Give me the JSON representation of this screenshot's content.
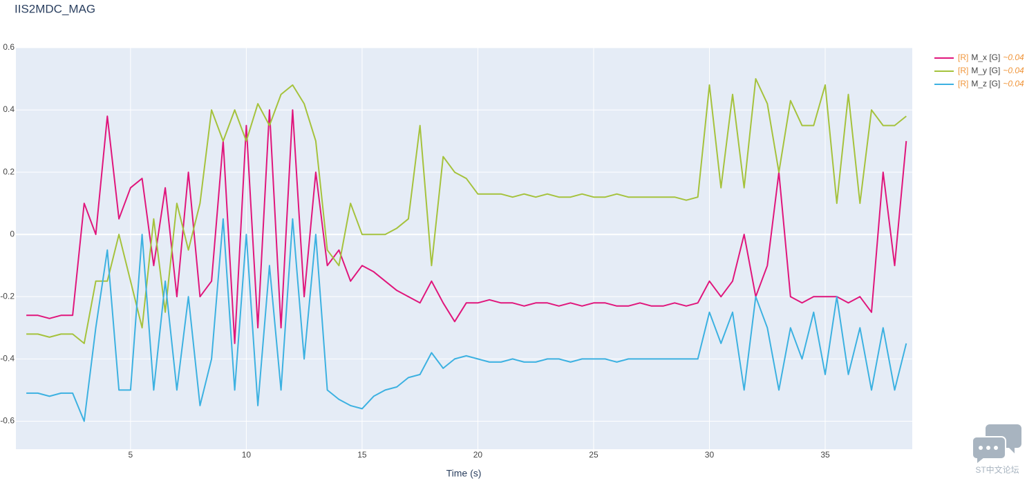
{
  "chart_data": {
    "type": "line",
    "title": "IIS2MDC_MAG",
    "x_label": "Time (s)",
    "watermark": "ST中文论坛",
    "x": [
      0.5,
      1,
      1.5,
      2,
      2.5,
      3,
      3.5,
      4,
      4.5,
      5,
      5.5,
      6,
      6.5,
      7,
      7.5,
      8,
      8.5,
      9,
      9.5,
      10,
      10.5,
      11,
      11.5,
      12,
      12.5,
      13,
      13.5,
      14,
      14.5,
      15,
      15.5,
      16,
      16.5,
      17,
      17.5,
      18,
      18.5,
      19,
      19.5,
      20,
      20.5,
      21,
      21.5,
      22,
      22.5,
      23,
      23.5,
      24,
      24.5,
      25,
      25.5,
      26,
      26.5,
      27,
      27.5,
      28,
      28.5,
      29,
      29.5,
      30,
      30.5,
      31,
      31.5,
      32,
      32.5,
      33,
      33.5,
      34,
      34.5,
      35,
      35.5,
      36,
      36.5,
      37,
      37.5,
      38,
      38.5
    ],
    "series": [
      {
        "name": "M_x [G]",
        "tag": "[R]",
        "note": "~0.04",
        "color": "#e0157b",
        "values": [
          -0.26,
          -0.26,
          -0.27,
          -0.26,
          -0.26,
          0.1,
          0.0,
          0.38,
          0.05,
          0.15,
          0.18,
          -0.1,
          0.15,
          -0.2,
          0.2,
          -0.2,
          -0.15,
          0.3,
          -0.35,
          0.35,
          -0.3,
          0.4,
          -0.3,
          0.4,
          -0.2,
          0.2,
          -0.1,
          -0.05,
          -0.15,
          -0.1,
          -0.12,
          -0.15,
          -0.18,
          -0.2,
          -0.22,
          -0.15,
          -0.22,
          -0.28,
          -0.22,
          -0.22,
          -0.21,
          -0.22,
          -0.22,
          -0.23,
          -0.22,
          -0.22,
          -0.23,
          -0.22,
          -0.23,
          -0.22,
          -0.22,
          -0.23,
          -0.23,
          -0.22,
          -0.23,
          -0.23,
          -0.22,
          -0.23,
          -0.22,
          -0.15,
          -0.2,
          -0.15,
          0.0,
          -0.2,
          -0.1,
          0.2,
          -0.2,
          -0.22,
          -0.2,
          -0.2,
          -0.2,
          -0.22,
          -0.2,
          -0.25,
          0.2,
          -0.1,
          0.3
        ]
      },
      {
        "name": "M_y [G]",
        "tag": "[R]",
        "note": "~0.04",
        "color": "#a5c23c",
        "values": [
          -0.32,
          -0.32,
          -0.33,
          -0.32,
          -0.32,
          -0.35,
          -0.15,
          -0.15,
          0.0,
          -0.15,
          -0.3,
          0.05,
          -0.25,
          0.1,
          -0.05,
          0.1,
          0.4,
          0.3,
          0.4,
          0.3,
          0.42,
          0.35,
          0.45,
          0.48,
          0.42,
          0.3,
          -0.05,
          -0.1,
          0.1,
          0.0,
          0.0,
          0.0,
          0.02,
          0.05,
          0.35,
          -0.1,
          0.25,
          0.2,
          0.18,
          0.13,
          0.13,
          0.13,
          0.12,
          0.13,
          0.12,
          0.13,
          0.12,
          0.12,
          0.13,
          0.12,
          0.12,
          0.13,
          0.12,
          0.12,
          0.12,
          0.12,
          0.12,
          0.11,
          0.12,
          0.48,
          0.15,
          0.45,
          0.15,
          0.5,
          0.42,
          0.2,
          0.43,
          0.35,
          0.35,
          0.48,
          0.1,
          0.45,
          0.1,
          0.4,
          0.35,
          0.35,
          0.38
        ]
      },
      {
        "name": "M_z [G]",
        "tag": "[R]",
        "note": "~0.04",
        "color": "#3cb1e1",
        "values": [
          -0.51,
          -0.51,
          -0.52,
          -0.51,
          -0.51,
          -0.6,
          -0.3,
          -0.05,
          -0.5,
          -0.5,
          0.0,
          -0.5,
          -0.15,
          -0.5,
          -0.2,
          -0.55,
          -0.4,
          0.05,
          -0.5,
          0.0,
          -0.55,
          -0.1,
          -0.5,
          0.05,
          -0.4,
          0.0,
          -0.5,
          -0.53,
          -0.55,
          -0.56,
          -0.52,
          -0.5,
          -0.49,
          -0.46,
          -0.45,
          -0.38,
          -0.43,
          -0.4,
          -0.39,
          -0.4,
          -0.41,
          -0.41,
          -0.4,
          -0.41,
          -0.41,
          -0.4,
          -0.4,
          -0.41,
          -0.4,
          -0.4,
          -0.4,
          -0.41,
          -0.4,
          -0.4,
          -0.4,
          -0.4,
          -0.4,
          -0.4,
          -0.4,
          -0.25,
          -0.35,
          -0.25,
          -0.5,
          -0.2,
          -0.3,
          -0.5,
          -0.3,
          -0.4,
          -0.25,
          -0.45,
          -0.2,
          -0.45,
          -0.3,
          -0.5,
          -0.3,
          -0.5,
          -0.35
        ]
      }
    ],
    "xlim": [
      0.05,
      38.76
    ],
    "xticks": [
      5,
      10,
      15,
      20,
      25,
      30,
      35
    ],
    "ylim": [
      -0.69,
      0.6
    ],
    "yticks": [
      -0.6,
      -0.4,
      -0.2,
      0,
      0.2,
      0.4,
      0.6
    ],
    "grid": true,
    "legend": "right"
  }
}
